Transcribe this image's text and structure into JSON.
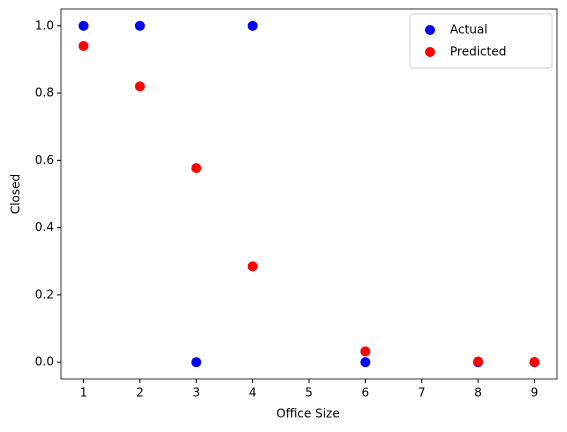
{
  "chart_data": {
    "type": "scatter",
    "xlabel": "Office Size",
    "ylabel": "Closed",
    "x": [
      1,
      2,
      3,
      4,
      6,
      8,
      9
    ],
    "series": [
      {
        "name": "Actual",
        "color": "#0000ff",
        "values": [
          1,
          1,
          0,
          1,
          0,
          0,
          0
        ]
      },
      {
        "name": "Predicted",
        "color": "#ff0000",
        "values": [
          0.94,
          0.82,
          0.577,
          0.285,
          0.032,
          0.002,
          0.0003
        ]
      }
    ],
    "xlim": [
      0.6,
      9.4
    ],
    "xticks": [
      1,
      2,
      3,
      4,
      5,
      6,
      7,
      8,
      9
    ],
    "ylim": [
      -0.05,
      1.05
    ],
    "yticks": [
      {
        "value": 0,
        "label": "0.0"
      },
      0.2,
      0.4,
      0.6,
      0.8,
      {
        "value": 1,
        "label": "1.0"
      }
    ],
    "legend": "upper-right",
    "grid": false
  }
}
